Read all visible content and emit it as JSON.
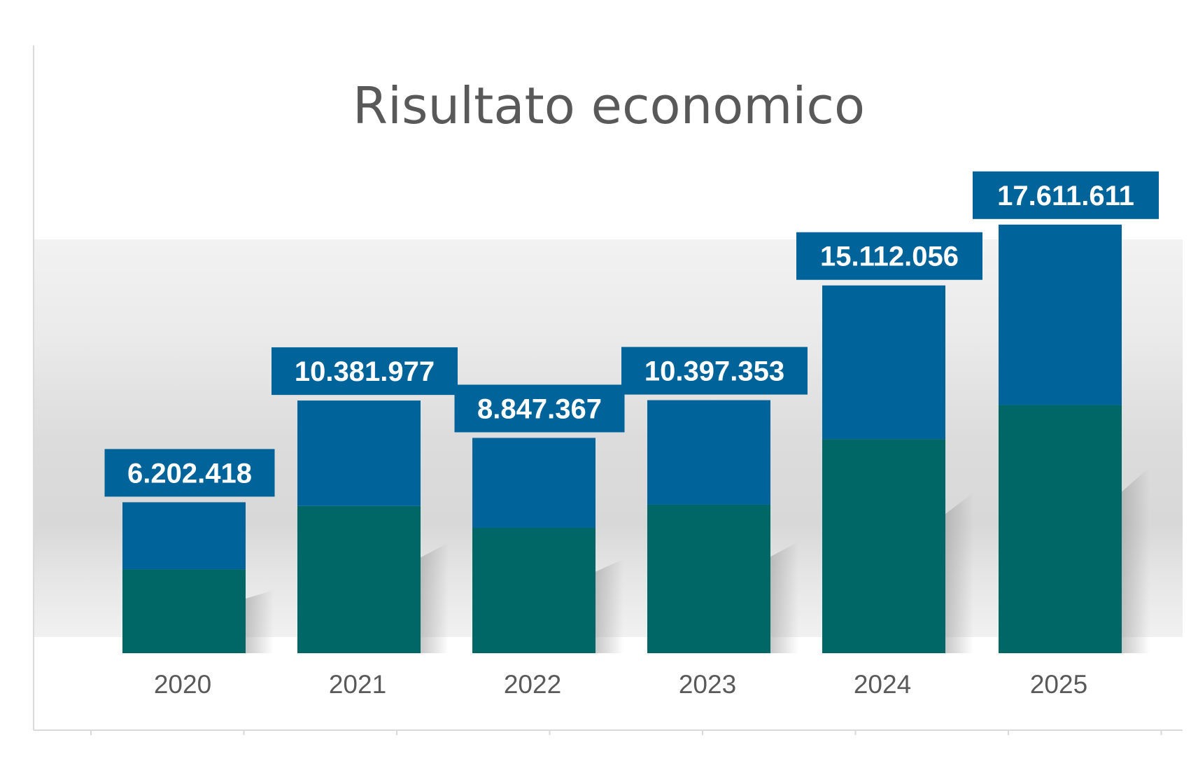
{
  "chart_data": {
    "type": "bar",
    "stacked": true,
    "title": "Risultato economico",
    "categories": [
      "2020",
      "2021",
      "2022",
      "2023",
      "2024",
      "2025"
    ],
    "series": [
      {
        "values": [
          3450000,
          6050000,
          5150000,
          6100000,
          8800000,
          10200000
        ]
      },
      {
        "values": [
          2752418,
          4331977,
          3697367,
          4297353,
          6312056,
          7411611
        ]
      }
    ],
    "totals": [
      6202418,
      10381977,
      8847367,
      10397353,
      15112056,
      17611611
    ],
    "data_labels": [
      "6.202.418",
      "10.381.977",
      "8.847.367",
      "10.397.353",
      "15.112.056",
      "17.611.611"
    ],
    "colors": {
      "bottom_series": "#006666",
      "top_series": "#00649a",
      "label_background": "#00649a",
      "label_text": "#ffffff",
      "title": "#595959",
      "axis_text": "#595959",
      "plot_band_light": "#efefef",
      "plot_band_mid": "#e3e3e3",
      "plot_band_dark": "#d6d6d6",
      "axis_line": "#d9d9d9"
    },
    "ylim": [
      0,
      20000000
    ],
    "grid": false,
    "legend": "none",
    "xlabel": "",
    "ylabel": ""
  }
}
